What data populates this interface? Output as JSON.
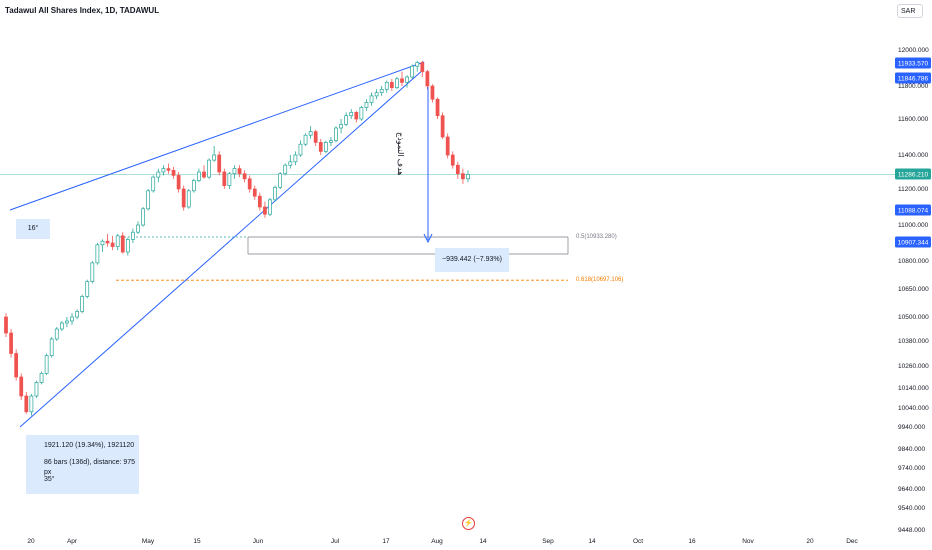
{
  "title": "Tadawul All Shares Index, 1D, TADAWUL",
  "currency": "SAR",
  "chart_data": {
    "type": "candlestick",
    "symbol": "Tadawul All Shares Index",
    "interval": "1D",
    "exchange": "TADAWUL",
    "y_axis_ticks": [
      12000.0,
      11800.0,
      11600.0,
      11400.0,
      11200.0,
      11000.0,
      10800.0,
      10650.0,
      10500.0,
      10380.0,
      10260.0,
      10140.0,
      10040.0,
      9940.0,
      9840.0,
      9740.0,
      9640.0,
      9540.0,
      9448.0
    ],
    "y_axis_labels": [
      "12000.000",
      "11800.000",
      "11600.000",
      "11400.000",
      "11200.000",
      "11000.000",
      "10800.000",
      "10650.000",
      "10500.000",
      "10380.000",
      "10260.000",
      "10140.000",
      "10040.000",
      "9940.000",
      "9840.000",
      "9740.000",
      "9640.000",
      "9540.000",
      "9448.000"
    ],
    "x_axis_labels": [
      "20",
      "Apr",
      "May",
      "15",
      "Jun",
      "Jul",
      "17",
      "Aug",
      "14",
      "Sep",
      "14",
      "Oct",
      "16",
      "Nov",
      "20",
      "Dec"
    ],
    "price_tags": [
      {
        "value": "11933.570",
        "color": "#2962ff"
      },
      {
        "value": "11846.786",
        "color": "#2962ff"
      },
      {
        "value": "11286.210",
        "color": "#26a69a"
      },
      {
        "value": "11088.074",
        "color": "#2962ff"
      },
      {
        "value": "10907.344",
        "color": "#2962ff"
      }
    ],
    "candles": [
      {
        "o": 10500,
        "h": 10520,
        "l": 10400,
        "c": 10420
      },
      {
        "o": 10420,
        "h": 10440,
        "l": 10300,
        "c": 10320
      },
      {
        "o": 10320,
        "h": 10340,
        "l": 10180,
        "c": 10200
      },
      {
        "o": 10200,
        "h": 10220,
        "l": 10080,
        "c": 10100
      },
      {
        "o": 10100,
        "h": 10120,
        "l": 10010,
        "c": 10020
      },
      {
        "o": 10020,
        "h": 10110,
        "l": 10000,
        "c": 10100
      },
      {
        "o": 10100,
        "h": 10180,
        "l": 10090,
        "c": 10170
      },
      {
        "o": 10170,
        "h": 10230,
        "l": 10160,
        "c": 10220
      },
      {
        "o": 10220,
        "h": 10320,
        "l": 10210,
        "c": 10310
      },
      {
        "o": 10310,
        "h": 10400,
        "l": 10300,
        "c": 10390
      },
      {
        "o": 10390,
        "h": 10450,
        "l": 10380,
        "c": 10440
      },
      {
        "o": 10440,
        "h": 10480,
        "l": 10430,
        "c": 10470
      },
      {
        "o": 10470,
        "h": 10500,
        "l": 10450,
        "c": 10480
      },
      {
        "o": 10480,
        "h": 10520,
        "l": 10460,
        "c": 10500
      },
      {
        "o": 10500,
        "h": 10540,
        "l": 10490,
        "c": 10530
      },
      {
        "o": 10530,
        "h": 10620,
        "l": 10520,
        "c": 10610
      },
      {
        "o": 10610,
        "h": 10700,
        "l": 10600,
        "c": 10690
      },
      {
        "o": 10690,
        "h": 10800,
        "l": 10680,
        "c": 10790
      },
      {
        "o": 10790,
        "h": 10900,
        "l": 10780,
        "c": 10890
      },
      {
        "o": 10890,
        "h": 10920,
        "l": 10850,
        "c": 10910
      },
      {
        "o": 10910,
        "h": 10950,
        "l": 10880,
        "c": 10900
      },
      {
        "o": 10900,
        "h": 10940,
        "l": 10860,
        "c": 10880
      },
      {
        "o": 10880,
        "h": 10950,
        "l": 10860,
        "c": 10940
      },
      {
        "o": 10940,
        "h": 10960,
        "l": 10840,
        "c": 10850
      },
      {
        "o": 10850,
        "h": 10930,
        "l": 10830,
        "c": 10920
      },
      {
        "o": 10920,
        "h": 10980,
        "l": 10900,
        "c": 10960
      },
      {
        "o": 10960,
        "h": 11020,
        "l": 10950,
        "c": 11000
      },
      {
        "o": 11000,
        "h": 11100,
        "l": 10990,
        "c": 11090
      },
      {
        "o": 11090,
        "h": 11200,
        "l": 11080,
        "c": 11190
      },
      {
        "o": 11190,
        "h": 11280,
        "l": 11180,
        "c": 11270
      },
      {
        "o": 11270,
        "h": 11320,
        "l": 11240,
        "c": 11300
      },
      {
        "o": 11300,
        "h": 11340,
        "l": 11280,
        "c": 11320
      },
      {
        "o": 11320,
        "h": 11350,
        "l": 11290,
        "c": 11310
      },
      {
        "o": 11310,
        "h": 11330,
        "l": 11260,
        "c": 11280
      },
      {
        "o": 11280,
        "h": 11300,
        "l": 11180,
        "c": 11200
      },
      {
        "o": 11200,
        "h": 11220,
        "l": 11080,
        "c": 11100
      },
      {
        "o": 11100,
        "h": 11200,
        "l": 11090,
        "c": 11190
      },
      {
        "o": 11190,
        "h": 11260,
        "l": 11180,
        "c": 11250
      },
      {
        "o": 11250,
        "h": 11320,
        "l": 11240,
        "c": 11300
      },
      {
        "o": 11300,
        "h": 11340,
        "l": 11260,
        "c": 11270
      },
      {
        "o": 11270,
        "h": 11380,
        "l": 11260,
        "c": 11370
      },
      {
        "o": 11370,
        "h": 11450,
        "l": 11360,
        "c": 11400
      },
      {
        "o": 11400,
        "h": 11420,
        "l": 11280,
        "c": 11300
      },
      {
        "o": 11300,
        "h": 11320,
        "l": 11200,
        "c": 11220
      },
      {
        "o": 11220,
        "h": 11300,
        "l": 11200,
        "c": 11290
      },
      {
        "o": 11290,
        "h": 11340,
        "l": 11260,
        "c": 11320
      },
      {
        "o": 11320,
        "h": 11340,
        "l": 11270,
        "c": 11290
      },
      {
        "o": 11290,
        "h": 11310,
        "l": 11240,
        "c": 11260
      },
      {
        "o": 11260,
        "h": 11280,
        "l": 11180,
        "c": 11200
      },
      {
        "o": 11200,
        "h": 11220,
        "l": 11140,
        "c": 11160
      },
      {
        "o": 11160,
        "h": 11180,
        "l": 11080,
        "c": 11100
      },
      {
        "o": 11100,
        "h": 11130,
        "l": 11040,
        "c": 11060
      },
      {
        "o": 11060,
        "h": 11150,
        "l": 11050,
        "c": 11140
      },
      {
        "o": 11140,
        "h": 11220,
        "l": 11130,
        "c": 11210
      },
      {
        "o": 11210,
        "h": 11300,
        "l": 11200,
        "c": 11290
      },
      {
        "o": 11290,
        "h": 11350,
        "l": 11280,
        "c": 11340
      },
      {
        "o": 11340,
        "h": 11400,
        "l": 11320,
        "c": 11360
      },
      {
        "o": 11360,
        "h": 11420,
        "l": 11340,
        "c": 11400
      },
      {
        "o": 11400,
        "h": 11480,
        "l": 11390,
        "c": 11460
      },
      {
        "o": 11460,
        "h": 11520,
        "l": 11450,
        "c": 11510
      },
      {
        "o": 11510,
        "h": 11560,
        "l": 11490,
        "c": 11530
      },
      {
        "o": 11530,
        "h": 11540,
        "l": 11450,
        "c": 11470
      },
      {
        "o": 11470,
        "h": 11490,
        "l": 11400,
        "c": 11420
      },
      {
        "o": 11420,
        "h": 11480,
        "l": 11410,
        "c": 11470
      },
      {
        "o": 11470,
        "h": 11500,
        "l": 11450,
        "c": 11480
      },
      {
        "o": 11480,
        "h": 11560,
        "l": 11470,
        "c": 11550
      },
      {
        "o": 11550,
        "h": 11600,
        "l": 11520,
        "c": 11570
      },
      {
        "o": 11570,
        "h": 11640,
        "l": 11560,
        "c": 11620
      },
      {
        "o": 11620,
        "h": 11660,
        "l": 11600,
        "c": 11640
      },
      {
        "o": 11640,
        "h": 11650,
        "l": 11580,
        "c": 11600
      },
      {
        "o": 11600,
        "h": 11680,
        "l": 11590,
        "c": 11670
      },
      {
        "o": 11670,
        "h": 11720,
        "l": 11650,
        "c": 11700
      },
      {
        "o": 11700,
        "h": 11760,
        "l": 11680,
        "c": 11740
      },
      {
        "o": 11740,
        "h": 11780,
        "l": 11720,
        "c": 11760
      },
      {
        "o": 11760,
        "h": 11800,
        "l": 11740,
        "c": 11780
      },
      {
        "o": 11780,
        "h": 11830,
        "l": 11760,
        "c": 11820
      },
      {
        "o": 11820,
        "h": 11840,
        "l": 11770,
        "c": 11790
      },
      {
        "o": 11790,
        "h": 11850,
        "l": 11780,
        "c": 11840
      },
      {
        "o": 11840,
        "h": 11880,
        "l": 11800,
        "c": 11820
      },
      {
        "o": 11820,
        "h": 11860,
        "l": 11790,
        "c": 11850
      },
      {
        "o": 11850,
        "h": 11920,
        "l": 11840,
        "c": 11910
      },
      {
        "o": 11910,
        "h": 11940,
        "l": 11880,
        "c": 11930
      },
      {
        "o": 11930,
        "h": 11940,
        "l": 11850,
        "c": 11880
      },
      {
        "o": 11880,
        "h": 11890,
        "l": 11780,
        "c": 11800
      },
      {
        "o": 11800,
        "h": 11810,
        "l": 11700,
        "c": 11720
      },
      {
        "o": 11720,
        "h": 11730,
        "l": 11600,
        "c": 11620
      },
      {
        "o": 11620,
        "h": 11640,
        "l": 11490,
        "c": 11500
      },
      {
        "o": 11500,
        "h": 11520,
        "l": 11380,
        "c": 11400
      },
      {
        "o": 11400,
        "h": 11420,
        "l": 11320,
        "c": 11340
      },
      {
        "o": 11340,
        "h": 11360,
        "l": 11260,
        "c": 11290
      },
      {
        "o": 11290,
        "h": 11320,
        "l": 11230,
        "c": 11260
      },
      {
        "o": 11260,
        "h": 11310,
        "l": 11240,
        "c": 11286
      }
    ],
    "current_price": 11286.21,
    "fib_levels": [
      {
        "ratio": "0.5",
        "price": 10933.28,
        "label": "0.5(10933.280)",
        "color": "#787b86"
      },
      {
        "ratio": "0.618",
        "price": 10697.106,
        "label": "0.618(10697.106)",
        "color": "#f57c00"
      }
    ],
    "annotations": {
      "angle_upper": "16°",
      "angle_lower": "35°",
      "range_change": "1921.120 (19.34%), 1921120",
      "range_bars": "86 bars (136d), distance: 975 px",
      "measure": "−939.442 (−7.93%)",
      "arabic_label": "هدف النموذج"
    },
    "colors": {
      "up": "#26a69a",
      "down": "#ef5350",
      "trendline": "#2962ff",
      "fib_05": "#787b86",
      "fib_618": "#f57c00",
      "current_price_line": "#26a69a"
    }
  }
}
